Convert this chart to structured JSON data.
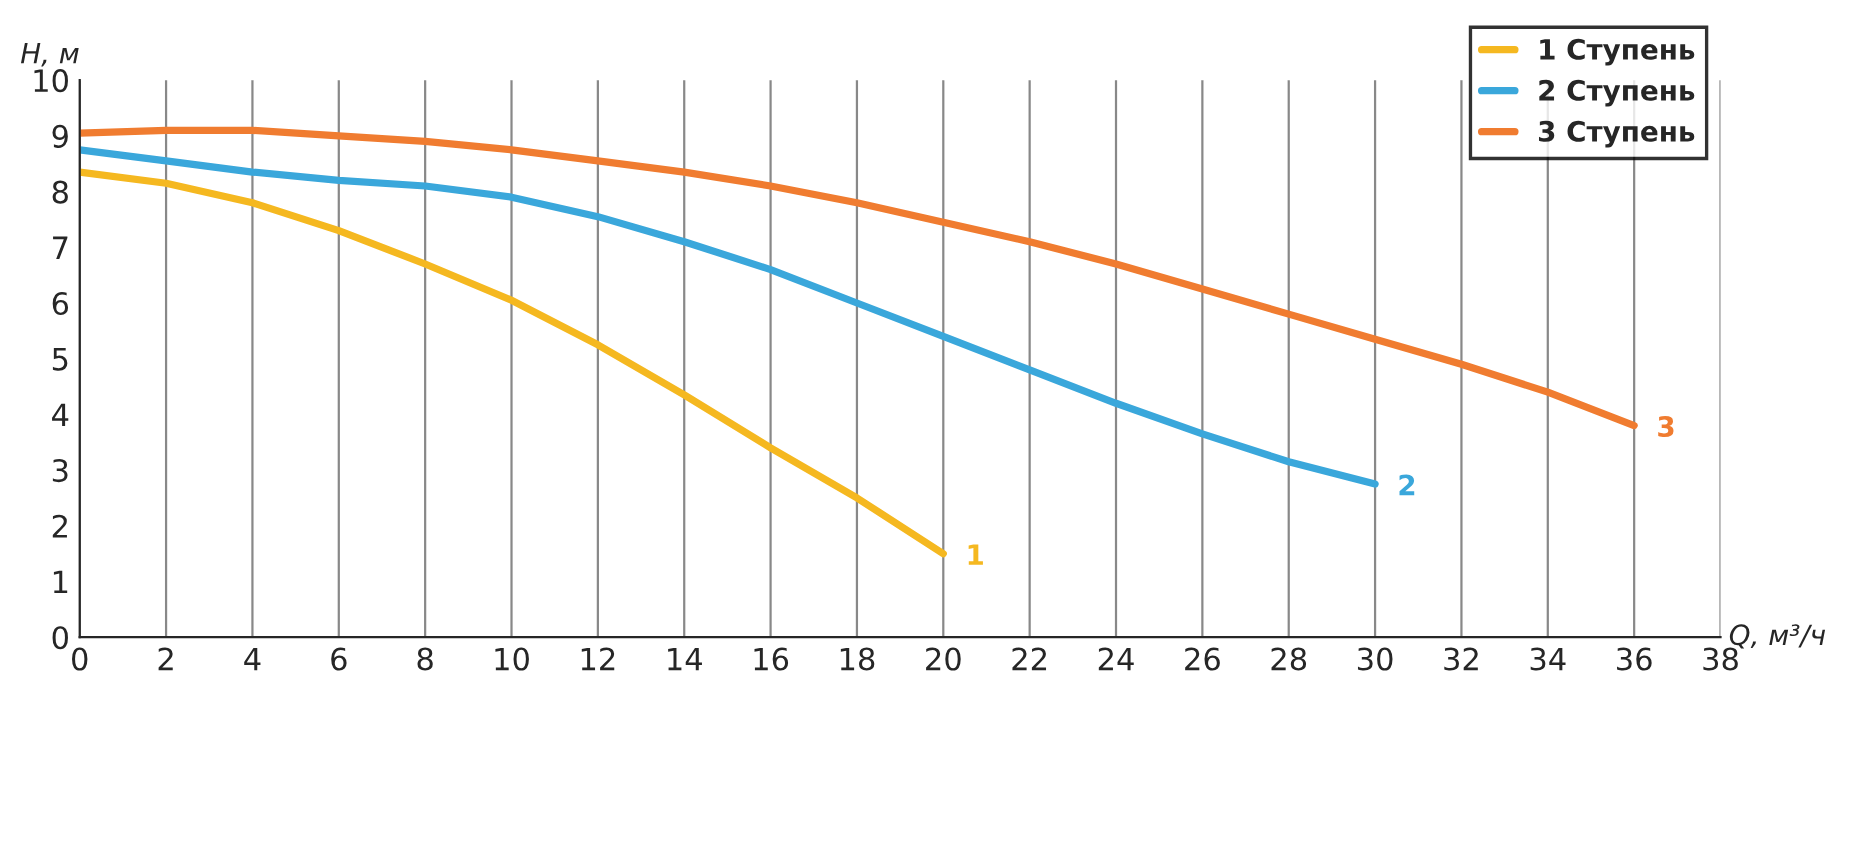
{
  "chart_data": {
    "type": "line",
    "xlabel": "Q, м³/ч",
    "ylabel": "H, м",
    "xlim": [
      0,
      38
    ],
    "ylim": [
      0,
      10
    ],
    "xticks": [
      0,
      2,
      4,
      6,
      8,
      10,
      12,
      14,
      16,
      18,
      20,
      22,
      24,
      26,
      28,
      30,
      32,
      34,
      36,
      38
    ],
    "yticks": [
      0,
      1,
      2,
      3,
      4,
      5,
      6,
      7,
      8,
      9,
      10
    ],
    "grid": "x",
    "legend": "top right",
    "marker": "none",
    "line_style": "solid",
    "series": [
      {
        "name": "1 Ступень",
        "color": "#f5b820",
        "x": [
          0,
          2,
          4,
          6,
          8,
          10,
          12,
          14,
          16,
          18,
          20
        ],
        "values": [
          8.35,
          8.15,
          7.8,
          7.3,
          6.7,
          6.05,
          5.25,
          4.35,
          3.4,
          2.5,
          1.5
        ]
      },
      {
        "name": "2 Ступень",
        "color": "#3aa7db",
        "x": [
          0,
          2,
          4,
          6,
          8,
          10,
          12,
          14,
          16,
          18,
          20,
          22,
          24,
          26,
          28,
          30
        ],
        "values": [
          8.75,
          8.55,
          8.35,
          8.2,
          8.1,
          7.9,
          7.55,
          7.1,
          6.6,
          6.0,
          5.4,
          4.8,
          4.2,
          3.65,
          3.15,
          2.75
        ]
      },
      {
        "name": "3 Ступень",
        "color": "#f07c30",
        "x": [
          0,
          2,
          4,
          6,
          8,
          10,
          12,
          14,
          16,
          18,
          20,
          22,
          24,
          26,
          28,
          30,
          32,
          34,
          36
        ],
        "values": [
          9.05,
          9.1,
          9.1,
          9.0,
          8.9,
          8.75,
          8.55,
          8.35,
          8.1,
          7.8,
          7.45,
          7.1,
          6.7,
          6.25,
          5.8,
          5.35,
          4.9,
          4.4,
          3.8
        ]
      }
    ],
    "annotations": [
      {
        "text": "1",
        "x": 20,
        "y": 1.5
      },
      {
        "text": "2",
        "x": 30,
        "y": 2.75
      },
      {
        "text": "3",
        "x": 36,
        "y": 3.8
      }
    ]
  }
}
